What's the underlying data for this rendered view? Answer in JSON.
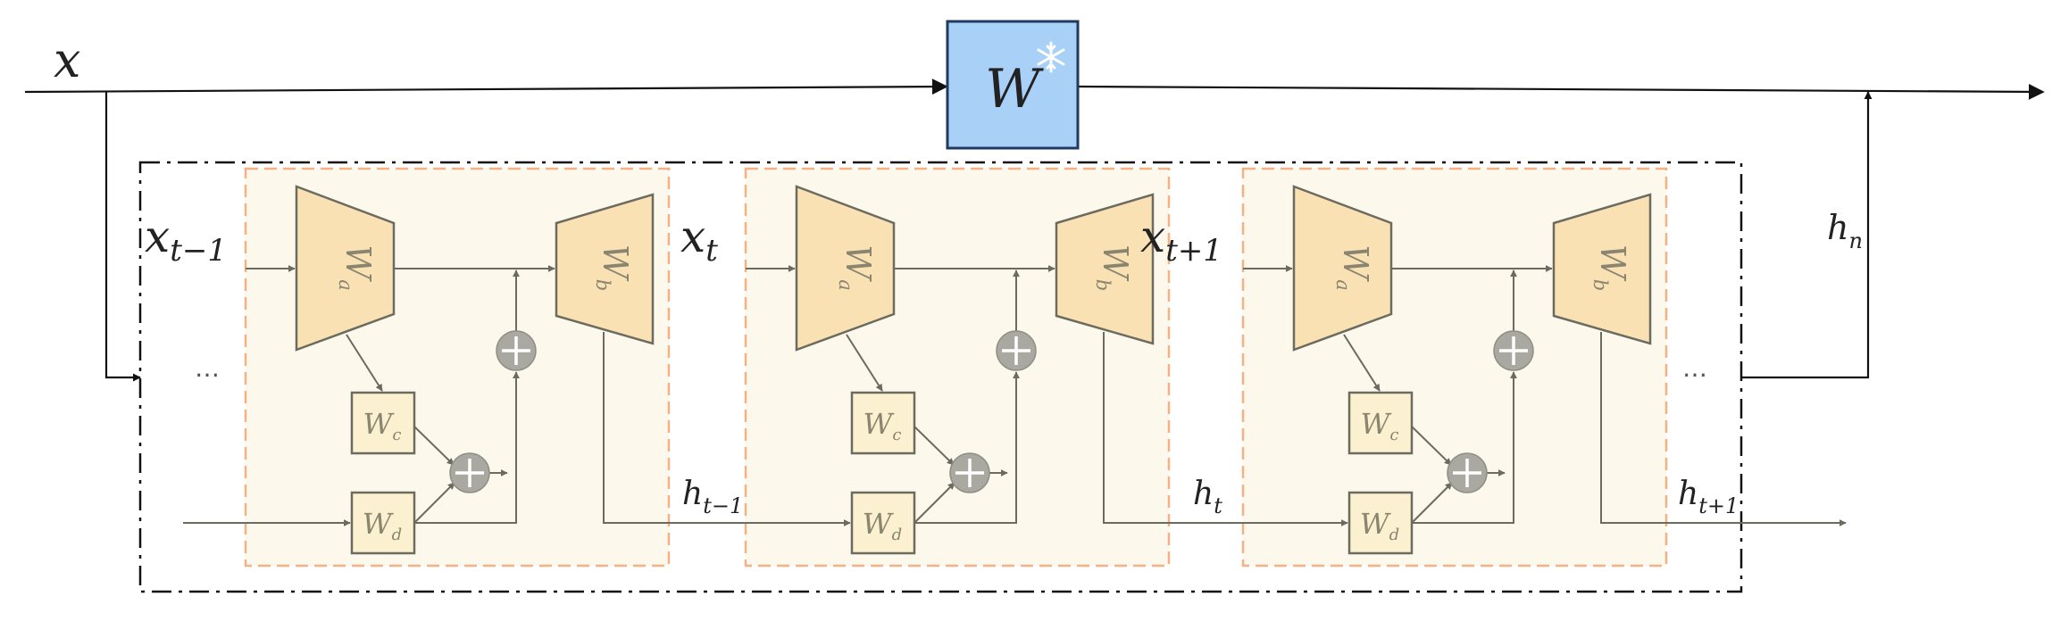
{
  "labels": {
    "input_x": "x",
    "frozen_weight": "W",
    "frozen_icon": "snowflake-icon",
    "output_hn_main": "h",
    "output_hn_sub": "n",
    "ellipsis": "…"
  },
  "cells": [
    {
      "x_main": "x",
      "x_sub": "t−1",
      "h_main": "h",
      "h_sub": "t−1",
      "wa": "W",
      "wa_sub": "a",
      "wb": "W",
      "wb_sub": "b",
      "wc": "W",
      "wc_sub": "c",
      "wd": "W",
      "wd_sub": "d"
    },
    {
      "x_main": "x",
      "x_sub": "t",
      "h_main": "h",
      "h_sub": "t",
      "wa": "W",
      "wa_sub": "a",
      "wb": "W",
      "wb_sub": "b",
      "wc": "W",
      "wc_sub": "c",
      "wd": "W",
      "wd_sub": "d"
    },
    {
      "x_main": "x",
      "x_sub": "t+1",
      "h_main": "h",
      "h_sub": "t+1",
      "wa": "W",
      "wa_sub": "a",
      "wb": "W",
      "wb_sub": "b",
      "wc": "W",
      "wc_sub": "c",
      "wd": "W",
      "wd_sub": "d"
    }
  ],
  "colors": {
    "frozen_fill": "#a9d1f7",
    "trapezoid_fill": "#fae1b4",
    "cell_fill": "#fcf8ec",
    "cell_border": "#f4b183",
    "small_box_fill": "#fbf0cf"
  }
}
